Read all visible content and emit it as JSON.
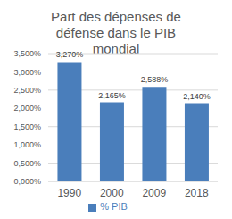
{
  "chart_data": {
    "type": "bar",
    "title": "Part des dépenses de défense dans le PIB mondial",
    "categories": [
      "1990",
      "2000",
      "2009",
      "2018"
    ],
    "series": [
      {
        "name": "% PIB",
        "color": "#4a7ebb",
        "values": [
          3.27,
          2.165,
          2.588,
          2.14
        ],
        "value_labels": [
          "3,270%",
          "2,165%",
          "2,588%",
          "2,140%"
        ]
      }
    ],
    "ylim": [
      0,
      3.5
    ],
    "yticks": [
      {
        "value": 0,
        "label": "0,000%"
      },
      {
        "value": 0.5,
        "label": "0,500%"
      },
      {
        "value": 1,
        "label": "1,000%"
      },
      {
        "value": 1.5,
        "label": "1,500%"
      },
      {
        "value": 2,
        "label": "2,000%"
      },
      {
        "value": 2.5,
        "label": "2,500%"
      },
      {
        "value": 3,
        "label": "3,000%"
      },
      {
        "value": 3.5,
        "label": "3,500%"
      }
    ],
    "grid": true,
    "legend": "bottom",
    "data_labels": true
  }
}
